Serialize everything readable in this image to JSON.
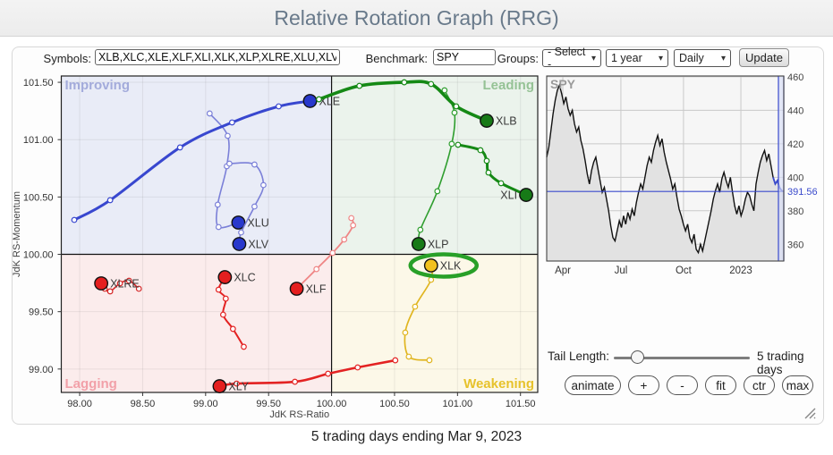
{
  "header": {
    "title": "Relative Rotation Graph (RRG)"
  },
  "icons": {
    "chevron_down": "▾"
  },
  "toolbar": {
    "symbols_label": "Symbols:",
    "symbols_value": "XLB,XLC,XLE,XLF,XLI,XLK,XLP,XLRE,XLU,XLV,XLY",
    "benchmark_label": "Benchmark:",
    "benchmark_value": "SPY",
    "groups_label": "Groups:",
    "groups_value": "- Select -",
    "period_value": "1 year",
    "frequency_value": "Daily",
    "update_label": "Update"
  },
  "chart_data": [
    {
      "type": "scatter",
      "title": "RRG quadrant chart",
      "xlabel": "JdK RS-Ratio",
      "ylabel": "JdK RS-Momentum",
      "x_range": [
        97.854,
        101.637
      ],
      "y_range": [
        98.796,
        101.555
      ],
      "x_ticks": [
        {
          "v": 98.0,
          "label": "98.00"
        },
        {
          "v": 98.5,
          "label": "98.50"
        },
        {
          "v": 99.0,
          "label": "99.00"
        },
        {
          "v": 99.5,
          "label": "99.50"
        },
        {
          "v": 100.0,
          "label": "100.00"
        },
        {
          "v": 100.5,
          "label": "100.50"
        },
        {
          "v": 101.0,
          "label": "101.00"
        },
        {
          "v": 101.5,
          "label": "101.50"
        }
      ],
      "y_ticks": [
        {
          "v": 101.5,
          "label": "101.50"
        },
        {
          "v": 101.0,
          "label": "101.00"
        },
        {
          "v": 100.5,
          "label": "100.50"
        },
        {
          "v": 100.0,
          "label": "100.00"
        },
        {
          "v": 99.5,
          "label": "99.50"
        },
        {
          "v": 99.0,
          "label": "99.00"
        }
      ],
      "quadrants": [
        {
          "name": "Improving",
          "pos": "top-left",
          "bg": "#e9ecf7",
          "color": "#a3abdb"
        },
        {
          "name": "Leading",
          "pos": "top-right",
          "bg": "#ebf3ec",
          "color": "#95c295"
        },
        {
          "name": "Lagging",
          "pos": "bottom-left",
          "bg": "#fbecec",
          "color": "#f2a0a8"
        },
        {
          "name": "Weakening",
          "pos": "bottom-right",
          "bg": "#fcf8e8",
          "color": "#e7c22b"
        }
      ],
      "securities": [
        {
          "symbol": "XLU",
          "line_color": "#7b80d8",
          "head_color": "#2838cc",
          "line_width": 1.6,
          "label_side": "right",
          "points": [
            [
              99.032,
              101.228
            ],
            [
              99.175,
              101.033
            ],
            [
              99.168,
              100.768
            ],
            [
              99.096,
              100.433
            ],
            [
              99.103,
              100.238
            ],
            [
              99.26,
              100.277
            ]
          ]
        },
        {
          "symbol": "XLV",
          "line_color": "#7b80d8",
          "head_color": "#2838cc",
          "line_width": 1.6,
          "label_side": "right",
          "points": [
            [
              99.189,
              100.791
            ],
            [
              99.388,
              100.783
            ],
            [
              99.459,
              100.604
            ],
            [
              99.388,
              100.417
            ],
            [
              99.282,
              100.191
            ],
            [
              99.267,
              100.09
            ]
          ]
        },
        {
          "symbol": "XLE",
          "line_color": "#3847cf",
          "head_color": "#2838cc",
          "line_width": 3.0,
          "label_side": "right",
          "points": [
            [
              97.957,
              100.3
            ],
            [
              98.242,
              100.472
            ],
            [
              98.797,
              100.932
            ],
            [
              99.21,
              101.15
            ],
            [
              99.58,
              101.29
            ],
            [
              99.829,
              101.337
            ]
          ]
        },
        {
          "symbol": "XLF",
          "line_color": "#ef8585",
          "head_color": "#e41f1f",
          "line_width": 1.8,
          "label_side": "right",
          "points": [
            [
              100.157,
              100.316
            ],
            [
              100.171,
              100.253
            ],
            [
              100.1,
              100.129
            ],
            [
              100.008,
              100.012
            ],
            [
              99.88,
              99.871
            ],
            [
              99.723,
              99.7
            ]
          ]
        },
        {
          "symbol": "XLRE",
          "line_color": "#d42525",
          "head_color": "#e41f1f",
          "line_width": 1.6,
          "label_side": "right",
          "points": [
            [
              98.47,
              99.7
            ],
            [
              98.392,
              99.77
            ],
            [
              98.32,
              99.747
            ],
            [
              98.242,
              99.677
            ],
            [
              98.199,
              99.7
            ],
            [
              98.171,
              99.747
            ]
          ]
        },
        {
          "symbol": "XLC",
          "line_color": "#e32222",
          "head_color": "#e41f1f",
          "line_width": 2.0,
          "label_side": "right",
          "points": [
            [
              99.303,
              99.194
            ],
            [
              99.217,
              99.35
            ],
            [
              99.139,
              99.474
            ],
            [
              99.16,
              99.614
            ],
            [
              99.103,
              99.692
            ],
            [
              99.153,
              99.801
            ]
          ]
        },
        {
          "symbol": "XLY",
          "line_color": "#e32222",
          "head_color": "#e41f1f",
          "line_width": 2.6,
          "label_side": "right",
          "points": [
            [
              100.506,
              99.076
            ],
            [
              100.207,
              99.014
            ],
            [
              99.972,
              98.959
            ],
            [
              99.709,
              98.889
            ],
            [
              99.246,
              98.873
            ],
            [
              99.111,
              98.85
            ]
          ]
        },
        {
          "symbol": "XLK",
          "line_color": "#e0b51f",
          "head_color": "#f2c11e",
          "line_width": 1.7,
          "label_side": "right",
          "points": [
            [
              100.777,
              99.077
            ],
            [
              100.613,
              99.108
            ],
            [
              100.585,
              99.318
            ],
            [
              100.663,
              99.544
            ],
            [
              100.79,
              99.778
            ],
            [
              100.79,
              99.903
            ]
          ]
        },
        {
          "symbol": "XLP",
          "line_color": "#2f9e2f",
          "head_color": "#177a17",
          "line_width": 1.6,
          "label_side": "right",
          "points": [
            [
              100.897,
              101.43
            ],
            [
              100.976,
              101.235
            ],
            [
              100.954,
              100.963
            ],
            [
              100.84,
              100.55
            ],
            [
              100.705,
              100.214
            ],
            [
              100.691,
              100.09
            ]
          ]
        },
        {
          "symbol": "XLB",
          "line_color": "#158915",
          "head_color": "#177a17",
          "line_width": 3.6,
          "label_side": "right",
          "points": [
            [
              99.9,
              101.352
            ],
            [
              100.221,
              101.469
            ],
            [
              100.577,
              101.5
            ],
            [
              100.79,
              101.485
            ],
            [
              100.99,
              101.29
            ],
            [
              101.232,
              101.165
            ]
          ]
        },
        {
          "symbol": "XLI",
          "line_color": "#158915",
          "head_color": "#177a17",
          "line_width": 3.0,
          "label_side": "left",
          "points": [
            [
              101.004,
              100.955
            ],
            [
              101.182,
              100.908
            ],
            [
              101.232,
              100.815
            ],
            [
              101.246,
              100.713
            ],
            [
              101.346,
              100.62
            ],
            [
              101.545,
              100.518
            ]
          ]
        }
      ],
      "highlight": {
        "symbol": "XLK",
        "color": "#28a028"
      }
    },
    {
      "type": "area",
      "title": "SPY",
      "last_price": 391.56,
      "last_price_label": "391.56",
      "accent_color": "#3a4acc",
      "y_range": [
        350,
        460.5
      ],
      "y_ticks": [
        {
          "v": 460,
          "label": "460"
        },
        {
          "v": 440,
          "label": "440"
        },
        {
          "v": 420,
          "label": "420"
        },
        {
          "v": 400,
          "label": "400"
        },
        {
          "v": 380,
          "label": "380"
        },
        {
          "v": 360,
          "label": "360"
        }
      ],
      "x_ticks": [
        {
          "f": 0.068,
          "label": "Apr"
        },
        {
          "f": 0.313,
          "label": "Jul"
        },
        {
          "f": 0.577,
          "label": "Oct"
        },
        {
          "f": 0.819,
          "label": "2023"
        }
      ],
      "prices": [
        412,
        418,
        428,
        438,
        446,
        452,
        455,
        450,
        444,
        448,
        441,
        437,
        440,
        432,
        427,
        430,
        422,
        417,
        410,
        402,
        396,
        404,
        409,
        412,
        405,
        398,
        391,
        394,
        387,
        380,
        371,
        364,
        362,
        368,
        374,
        370,
        377,
        372,
        379,
        375,
        381,
        377,
        385,
        391,
        396,
        393,
        400,
        407,
        412,
        409,
        416,
        421,
        425,
        419,
        423,
        415,
        409,
        404,
        399,
        393,
        396,
        388,
        381,
        377,
        372,
        368,
        372,
        364,
        361,
        366,
        357,
        355,
        360,
        356,
        362,
        368,
        374,
        380,
        387,
        392,
        396,
        391,
        399,
        403,
        398,
        394,
        400,
        391,
        383,
        378,
        383,
        377,
        381,
        387,
        391,
        389,
        384,
        380,
        396,
        403,
        409,
        413,
        416,
        410,
        414,
        407,
        400,
        396,
        398,
        394,
        392,
        391.56
      ],
      "recent_blue_points": 5
    }
  ],
  "tail_control": {
    "label": "Tail Length:",
    "value_label": "5 trading days"
  },
  "buttons": [
    "animate",
    "+",
    "-",
    "fit",
    "ctr",
    "max"
  ],
  "footer": {
    "caption": "5 trading days ending Mar 9, 2023"
  }
}
